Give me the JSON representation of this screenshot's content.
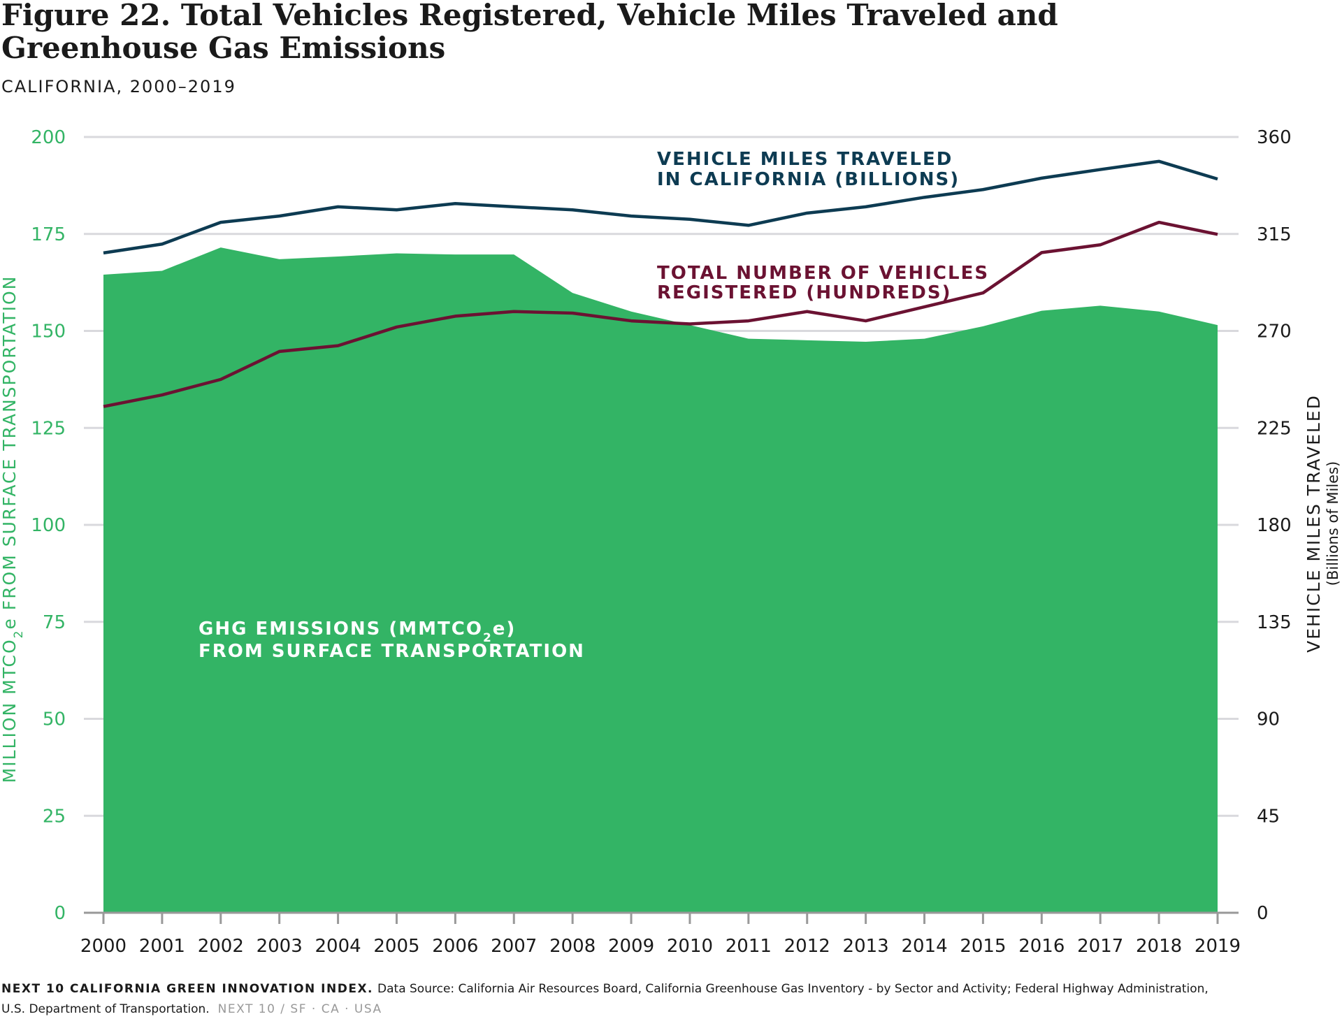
{
  "title_line1": "Figure 22. Total Vehicles Registered, Vehicle Miles Traveled and",
  "title_line2": "Greenhouse Gas Emissions",
  "subtitle": "CALIFORNIA, 2000–2019",
  "footer": {
    "brand": "NEXT 10 CALIFORNIA GREEN INNOVATION INDEX.",
    "source_line1": "Data Source: California Air Resources Board, California Greenhouse Gas Inventory - by Sector and Activity; Federal Highway Administration,",
    "source_line2": "U.S. Department of Transportation.",
    "tagline": "NEXT 10  /  SF · CA · USA"
  },
  "colors": {
    "ghg_area": "#33b465",
    "vmt_line": "#0d3b52",
    "vehicles_line": "#6b1232",
    "gridline": "#d9d9dd",
    "baseline": "#999999"
  },
  "chart_data": {
    "type": "area",
    "x": [
      "2000",
      "2001",
      "2002",
      "2003",
      "2004",
      "2005",
      "2006",
      "2007",
      "2008",
      "2009",
      "2010",
      "2011",
      "2012",
      "2013",
      "2014",
      "2015",
      "2016",
      "2017",
      "2018",
      "2019"
    ],
    "y_left": {
      "label_main": "MILLION MTCO",
      "label_sub": "2",
      "label_rest": "e FROM SURFACE TRANSPORTATION",
      "range": [
        0,
        200
      ],
      "ticks": [
        "0",
        "25",
        "50",
        "75",
        "100",
        "125",
        "150",
        "175",
        "200"
      ]
    },
    "y_right": {
      "label": "VEHICLE MILES TRAVELED",
      "sublabel": "(Billions of Miles)",
      "range": [
        0,
        360
      ],
      "ticks": [
        "0",
        "45",
        "90",
        "135",
        "180",
        "225",
        "270",
        "315",
        "360"
      ]
    },
    "grid": true,
    "series": [
      {
        "name_line1": "GHG EMISSIONS (MMTCO",
        "name_sub": "2",
        "name_rest": "e)",
        "name_line2": "FROM SURFACE TRANSPORTATION",
        "type": "area",
        "axis": "left",
        "values": [
          164.5,
          165.5,
          171.5,
          168.5,
          169.2,
          170.0,
          169.7,
          169.7,
          159.8,
          155.0,
          151.5,
          148.0,
          147.6,
          147.2,
          148.0,
          151.2,
          155.2,
          156.5,
          155.0,
          151.5
        ]
      },
      {
        "name_line1": "VEHICLE MILES TRAVELED",
        "name_line2": "IN CALIFORNIA (BILLIONS)",
        "type": "line",
        "axis": "right",
        "values": [
          306.2,
          310.3,
          320.4,
          323.3,
          327.6,
          326.2,
          329.1,
          327.6,
          326.2,
          323.3,
          321.8,
          319.0,
          324.7,
          327.6,
          332.0,
          335.6,
          340.9,
          344.9,
          348.7,
          340.5
        ]
      },
      {
        "name_line1": "TOTAL NUMBER OF VEHICLES",
        "name_line2": "REGISTERED (HUNDREDS)",
        "type": "line",
        "axis": "left",
        "values": [
          130.5,
          133.5,
          137.5,
          144.7,
          146.2,
          151.0,
          153.8,
          155.0,
          154.6,
          152.6,
          151.8,
          152.6,
          155.0,
          152.6,
          156.2,
          159.8,
          170.2,
          172.2,
          178.0,
          174.9
        ]
      }
    ]
  }
}
